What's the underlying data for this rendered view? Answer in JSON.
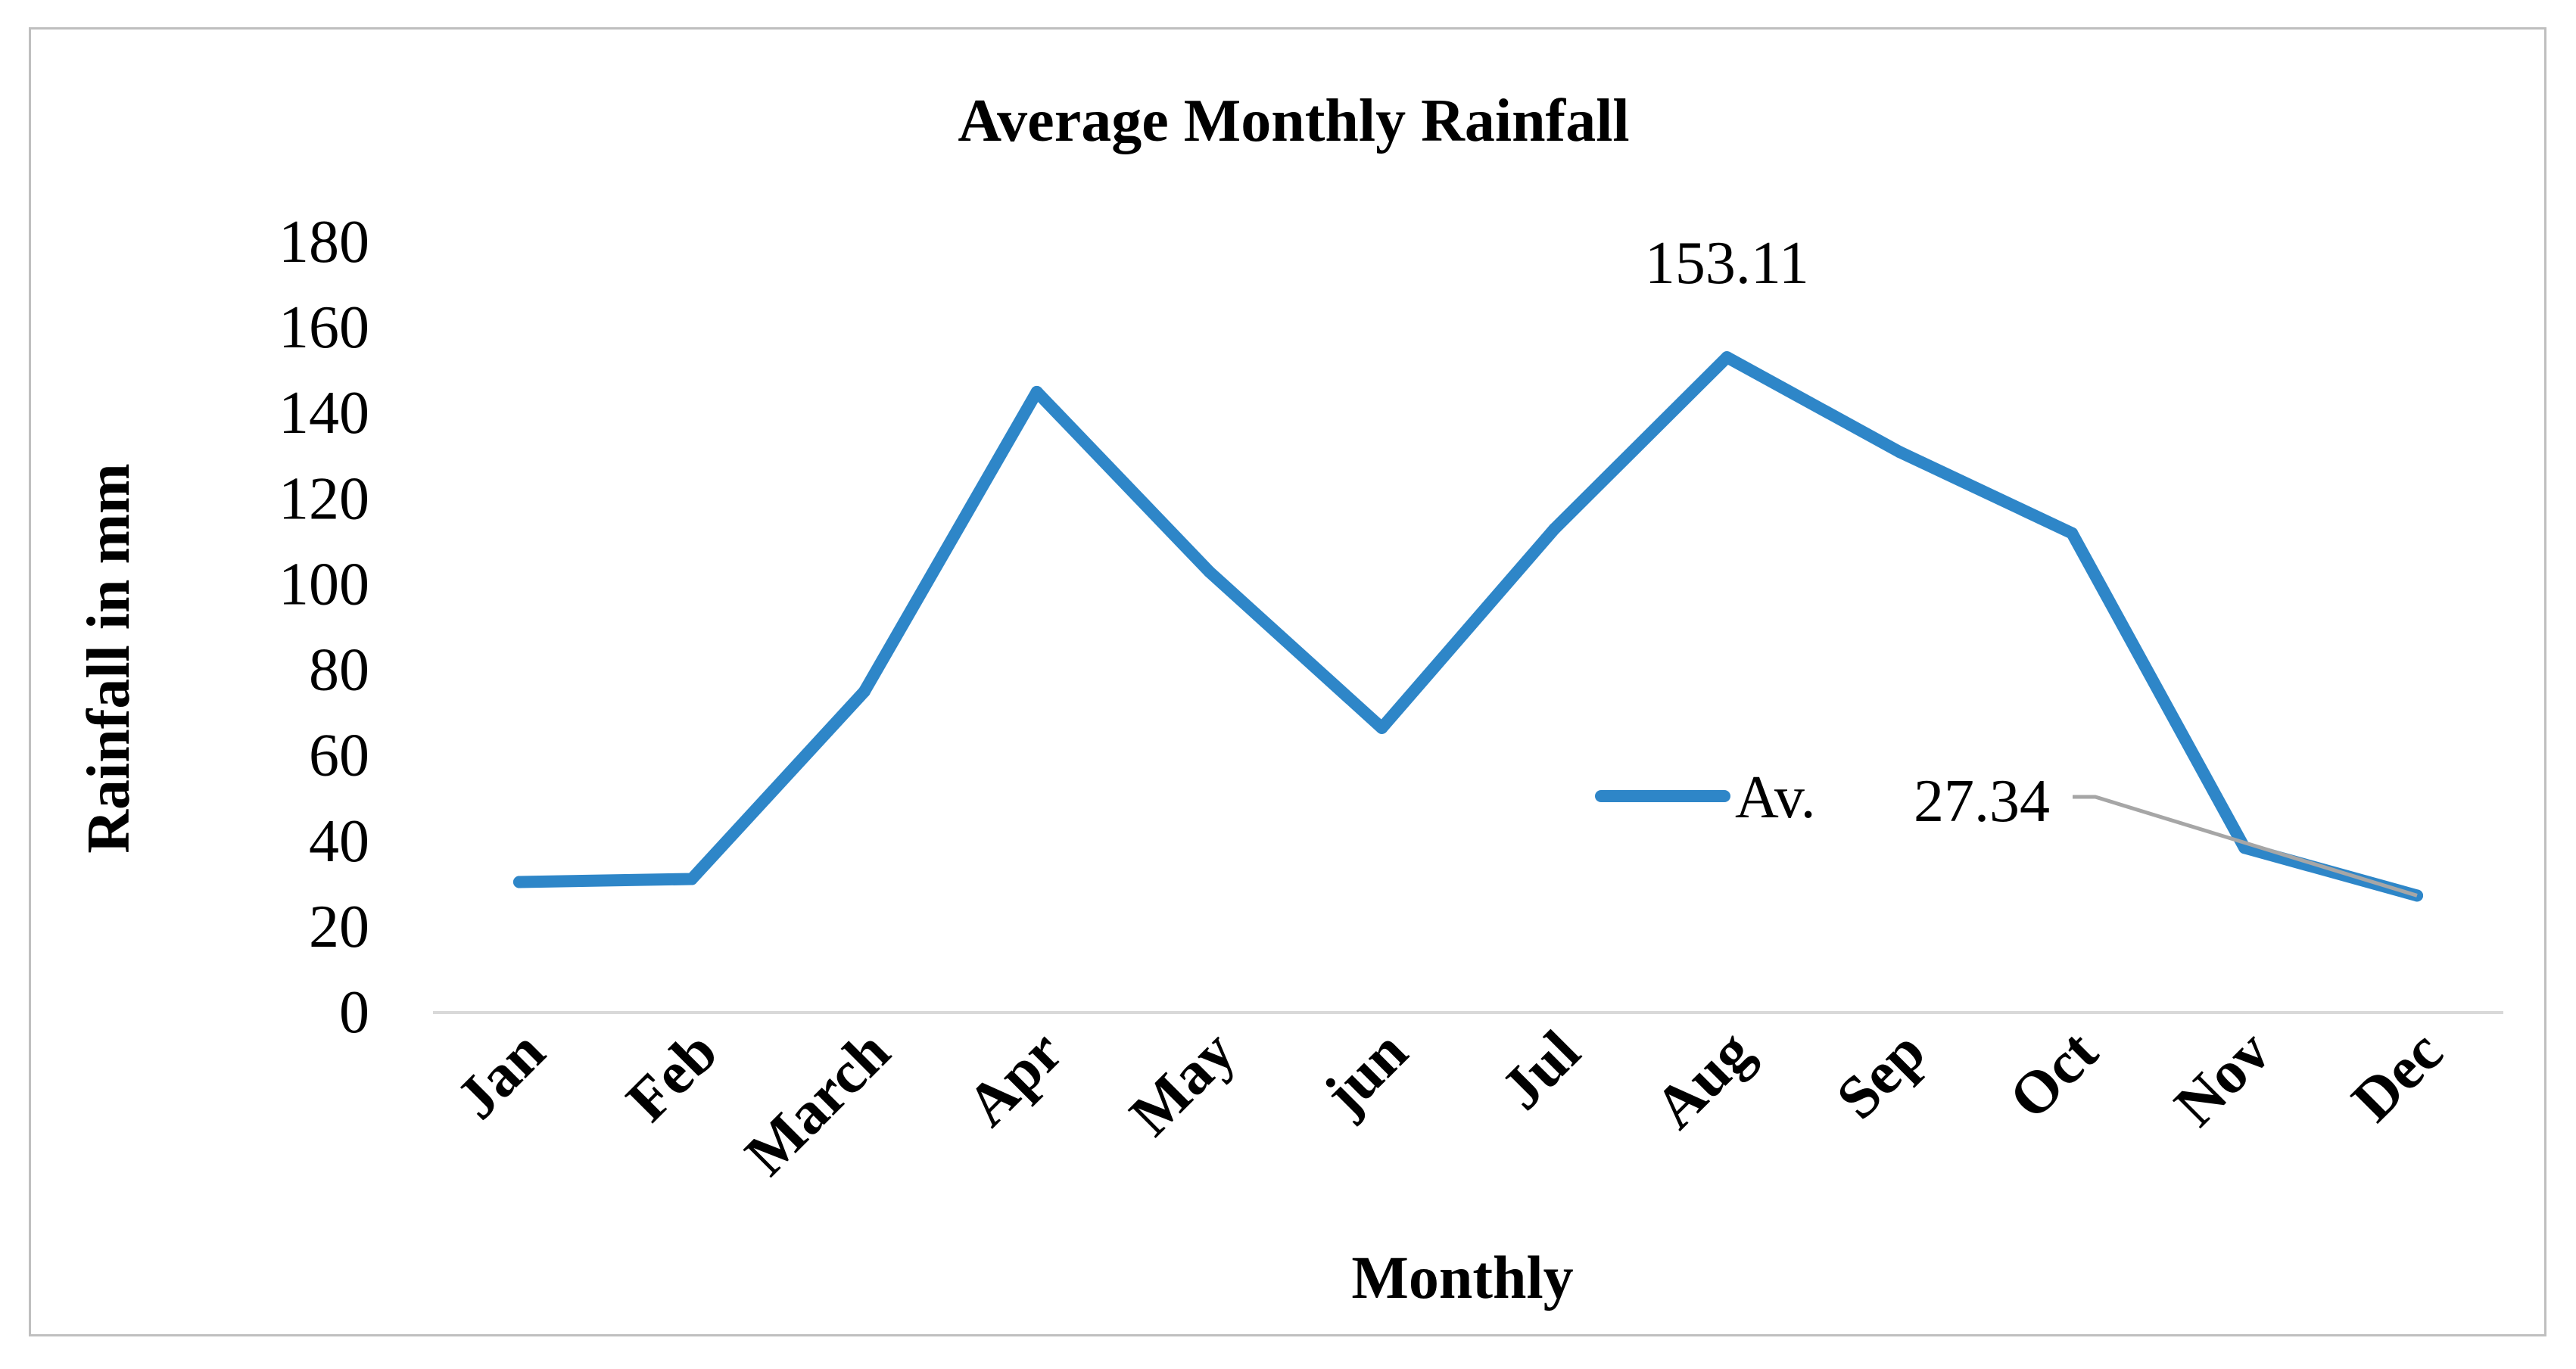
{
  "chart_data": {
    "type": "line",
    "title": "Average Monthly Rainfall",
    "xlabel": "Monthly",
    "ylabel": "Rainfall in mm",
    "ylim": [
      0,
      180
    ],
    "yticks": [
      0,
      20,
      40,
      60,
      80,
      100,
      120,
      140,
      160,
      180
    ],
    "categories": [
      "Jan",
      "Feb",
      "March",
      "Apr",
      "May",
      "jun",
      "Jul",
      "Aug",
      "Sep",
      "Oct",
      "Nov",
      "Dec"
    ],
    "series": [
      {
        "name": "Av.",
        "color": "#2e86c8",
        "values": [
          30.5,
          31.2,
          75.0,
          145.0,
          103.0,
          66.5,
          113.0,
          153.11,
          131.0,
          112.0,
          38.5,
          27.34
        ]
      }
    ],
    "data_labels": [
      {
        "category": "Aug",
        "text": "153.11"
      },
      {
        "category": "Dec",
        "text": "27.34",
        "leader_line": true
      }
    ],
    "grid": false,
    "legend_position": "inside-right"
  }
}
